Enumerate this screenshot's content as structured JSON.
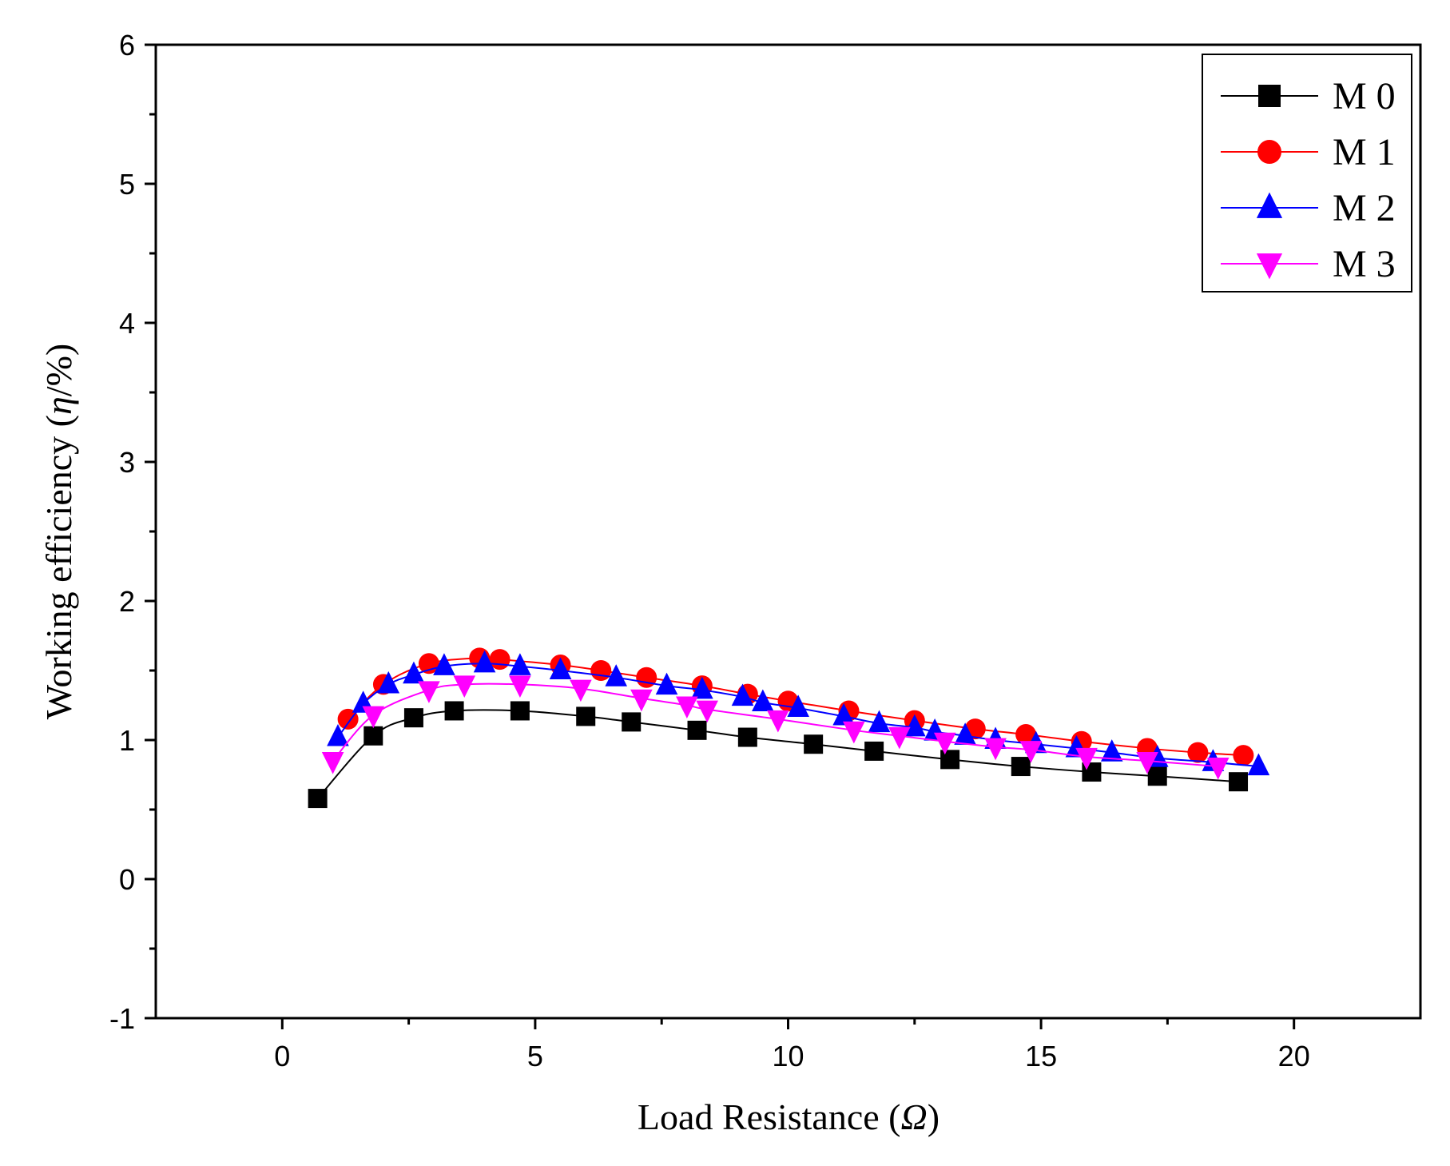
{
  "chart_data": {
    "type": "line",
    "title": "",
    "xlabel_prefix": "Load Resistance (",
    "xlabel_symbol": "Ω",
    "xlabel_suffix": ")",
    "ylabel_prefix": "Working efficiency (",
    "ylabel_symbol": "η",
    "ylabel_suffix": "/%)",
    "xlim": [
      -2.5,
      22.5
    ],
    "ylim": [
      -1,
      6
    ],
    "xticks": [
      0,
      5,
      10,
      15,
      20
    ],
    "xtick_labels": [
      "0",
      "5",
      "10",
      "15",
      "20"
    ],
    "yticks": [
      -1,
      0,
      1,
      2,
      3,
      4,
      5,
      6
    ],
    "ytick_labels": [
      "-1",
      "0",
      "1",
      "2",
      "3",
      "4",
      "5",
      "6"
    ],
    "legend_position": "top-right",
    "series": [
      {
        "name": "M 0",
        "color": "#000000",
        "marker": "square",
        "x": [
          0.7,
          1.8,
          2.6,
          3.4,
          4.7,
          6.0,
          6.9,
          8.2,
          9.2,
          10.5,
          11.7,
          13.2,
          14.6,
          16.0,
          17.3,
          18.9
        ],
        "y": [
          0.58,
          1.03,
          1.16,
          1.21,
          1.21,
          1.17,
          1.13,
          1.07,
          1.02,
          0.97,
          0.92,
          0.86,
          0.81,
          0.77,
          0.74,
          0.7
        ]
      },
      {
        "name": "M 1",
        "color": "#ff0000",
        "marker": "circle",
        "x": [
          1.3,
          2.0,
          2.9,
          3.9,
          4.3,
          5.5,
          6.3,
          7.2,
          8.3,
          9.2,
          10.0,
          11.2,
          12.5,
          13.7,
          14.7,
          15.8,
          17.1,
          18.1,
          19.0
        ],
        "y": [
          1.15,
          1.4,
          1.55,
          1.59,
          1.58,
          1.54,
          1.5,
          1.45,
          1.39,
          1.33,
          1.28,
          1.21,
          1.14,
          1.08,
          1.04,
          0.99,
          0.94,
          0.91,
          0.89
        ]
      },
      {
        "name": "M 2",
        "color": "#0000ff",
        "marker": "triangle-up",
        "x": [
          1.1,
          1.6,
          2.1,
          2.6,
          3.2,
          4.0,
          4.7,
          5.5,
          6.6,
          7.6,
          8.3,
          9.1,
          9.5,
          10.2,
          11.1,
          11.8,
          12.5,
          12.9,
          13.5,
          14.1,
          14.9,
          15.7,
          16.4,
          17.3,
          18.4,
          19.3
        ],
        "y": [
          1.02,
          1.26,
          1.4,
          1.47,
          1.53,
          1.55,
          1.53,
          1.5,
          1.45,
          1.39,
          1.36,
          1.31,
          1.27,
          1.23,
          1.17,
          1.12,
          1.09,
          1.06,
          1.03,
          1.0,
          0.97,
          0.94,
          0.91,
          0.87,
          0.84,
          0.81
        ]
      },
      {
        "name": "M 3",
        "color": "#ff00ff",
        "marker": "triangle-down",
        "x": [
          1.0,
          1.8,
          2.9,
          3.6,
          4.7,
          5.9,
          7.1,
          8.0,
          8.4,
          9.8,
          11.3,
          12.2,
          13.1,
          14.1,
          14.8,
          15.9,
          17.1,
          18.5
        ],
        "y": [
          0.85,
          1.18,
          1.36,
          1.4,
          1.4,
          1.37,
          1.3,
          1.25,
          1.22,
          1.15,
          1.07,
          1.03,
          0.99,
          0.95,
          0.93,
          0.88,
          0.85,
          0.81
        ]
      }
    ]
  }
}
